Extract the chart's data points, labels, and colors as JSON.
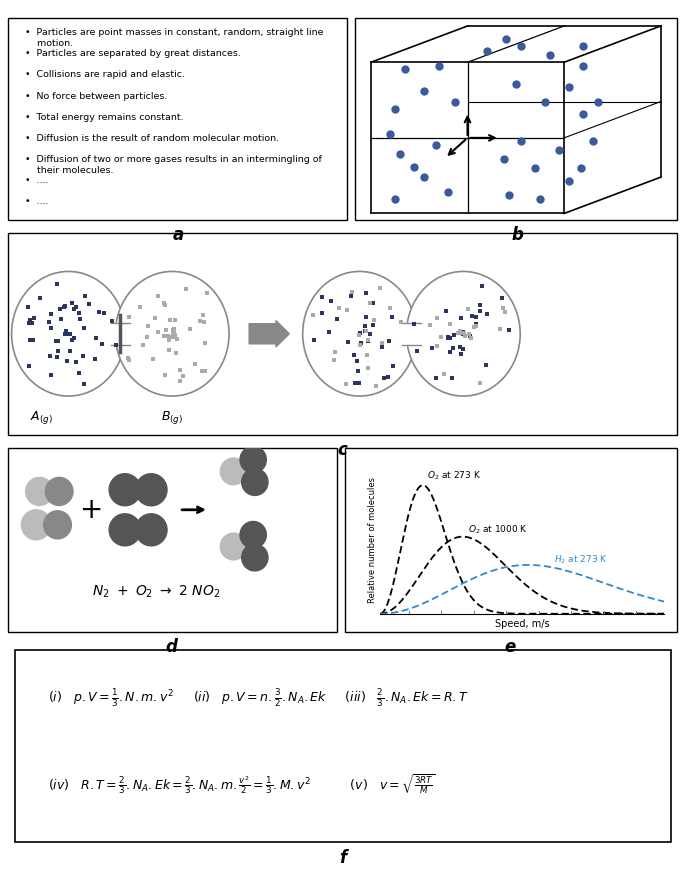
{
  "bg_color": "#ffffff",
  "panel_a_bullets": [
    "Particles are point masses in constant, random, straight line\n    motion.",
    "Particles are separated by great distances.",
    "Collisions are rapid and elastic.",
    "No force between particles.",
    "Total energy remains constant.",
    "Diffusion is the result of random molecular motion.",
    "Diffusion of two or more gases results in an intermingling of\n    their molecules.",
    "....",
    "...."
  ],
  "blue_dot_color": "#3a5a9c",
  "dark_dot_color": "#2c3560",
  "light_dot_color": "#aaaaaa",
  "arrow_gray": "#888888",
  "mol_light_gray": "#bbbbbb",
  "mol_dark_gray": "#555555",
  "mol_mid_gray": "#888888"
}
